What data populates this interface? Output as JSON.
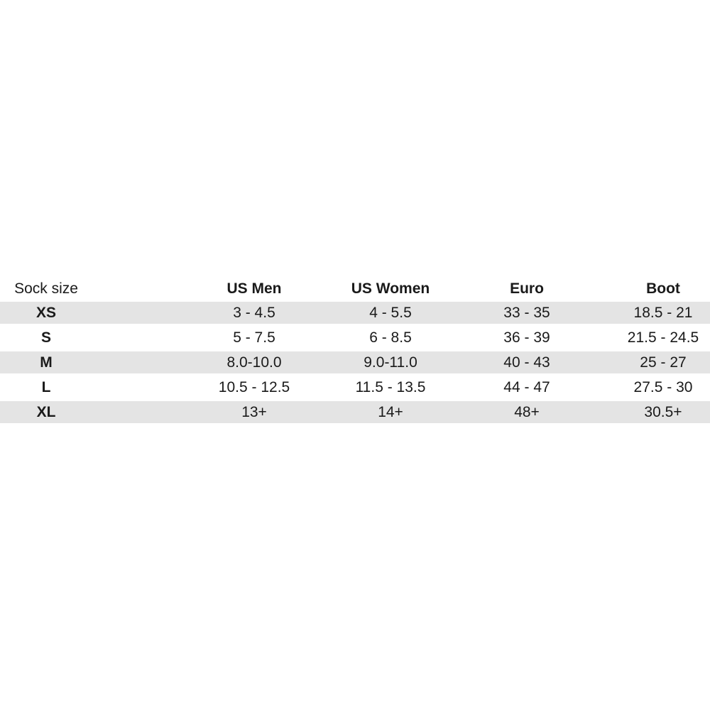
{
  "colors": {
    "background": "#ffffff",
    "stripe": "#e4e4e4",
    "text": "#1a1a1a"
  },
  "chart_data": {
    "type": "table",
    "title": "",
    "columns": [
      "Sock size",
      "US Men",
      "US Women",
      "Euro",
      "Boot"
    ],
    "rows": [
      [
        "XS",
        "3 - 4.5",
        "4 - 5.5",
        "33 - 35",
        "18.5 - 21"
      ],
      [
        "S",
        "5 - 7.5",
        "6 - 8.5",
        "36 - 39",
        "21.5 - 24.5"
      ],
      [
        "M",
        "8.0-10.0",
        "9.0-11.0",
        "40 - 43",
        "25 - 27"
      ],
      [
        "L",
        "10.5 - 12.5",
        "11.5 - 13.5",
        "44 - 47",
        "27.5 - 30"
      ],
      [
        "XL",
        "13+",
        "14+",
        "48+",
        "30.5+"
      ]
    ],
    "layout": {
      "striped_rows": [
        "XS",
        "M",
        "XL"
      ],
      "value_alignment": "center"
    }
  }
}
